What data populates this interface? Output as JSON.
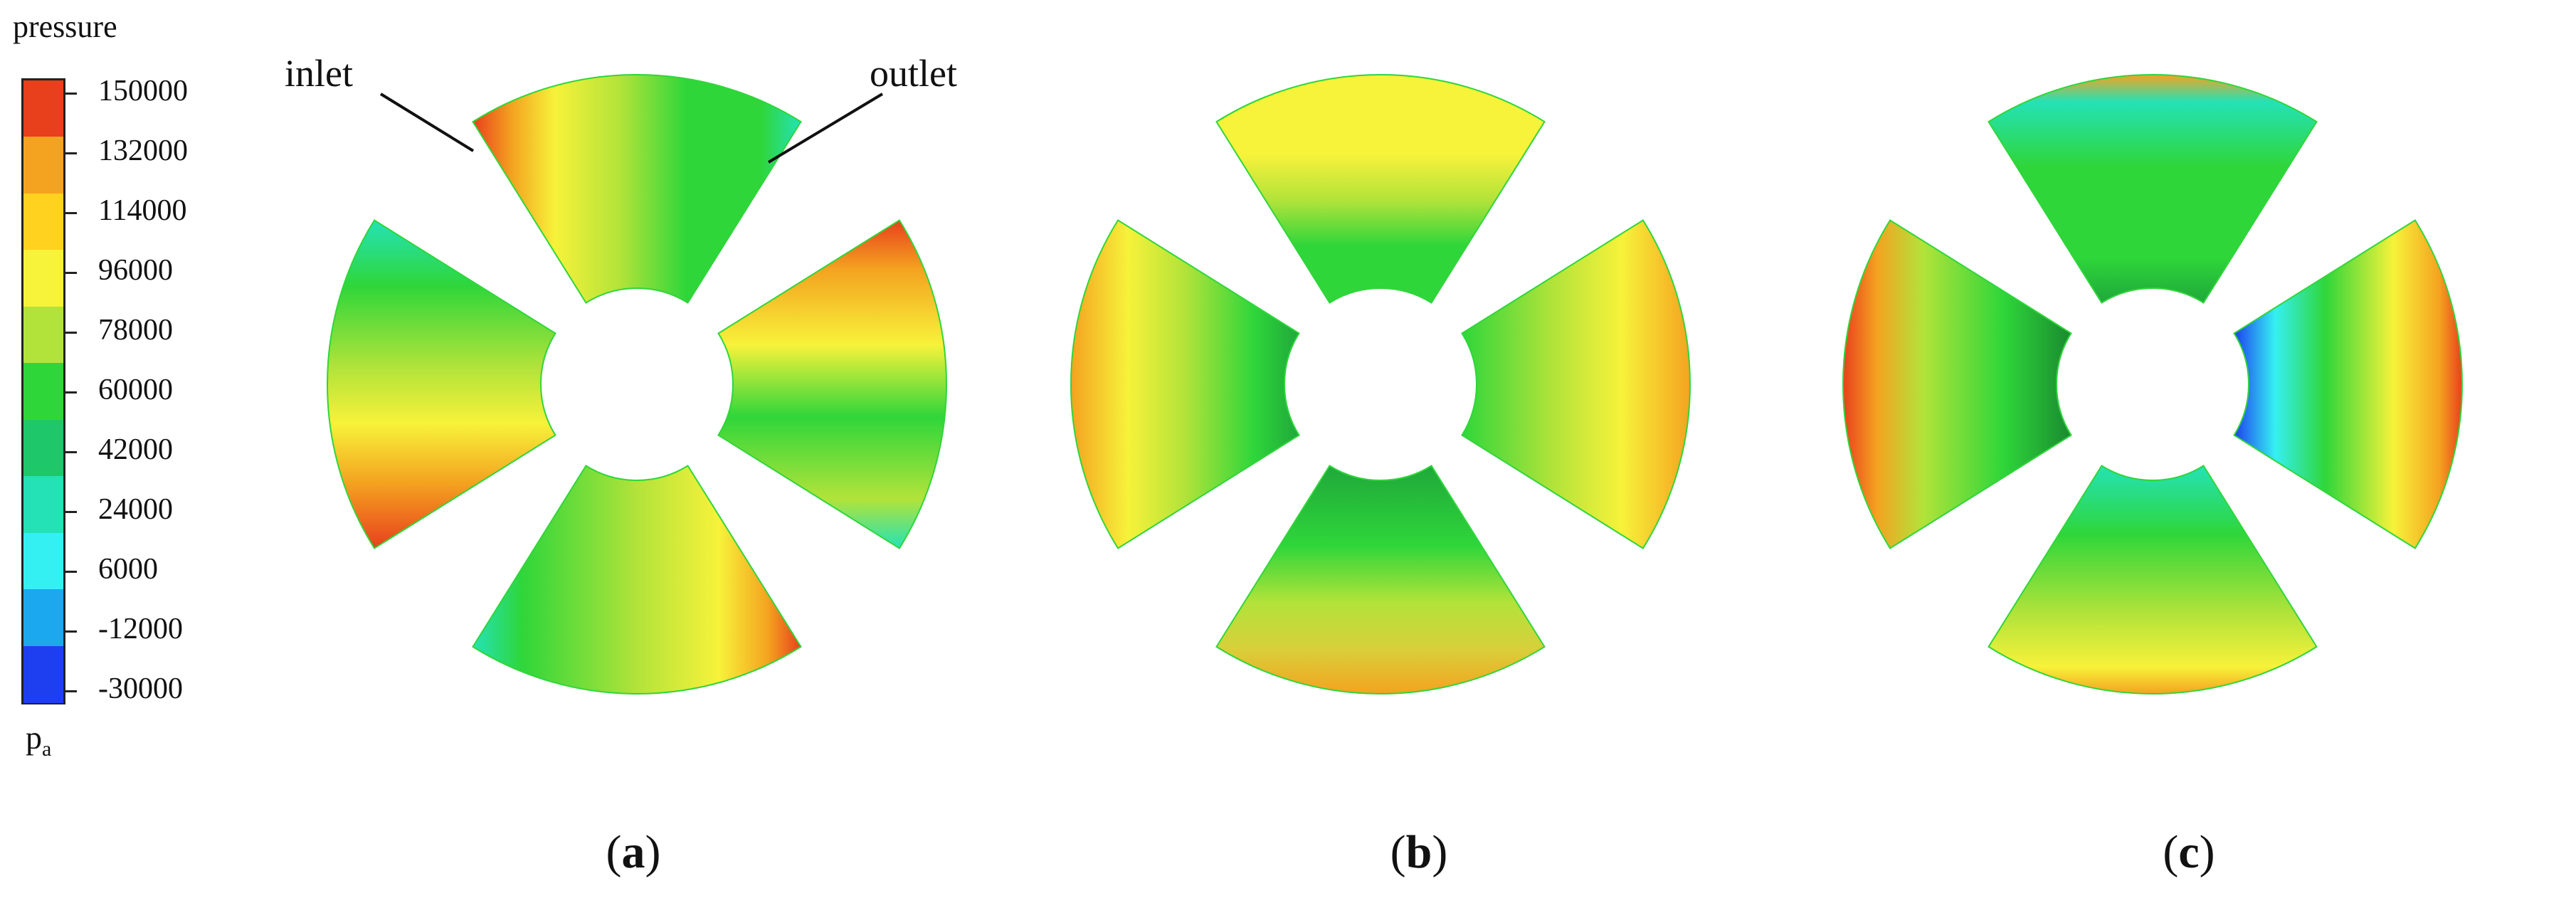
{
  "legend": {
    "title": "pressure",
    "unit": "p",
    "unit_subscript": "a",
    "ticks": [
      "150000",
      "132000",
      "114000",
      "96000",
      "78000",
      "60000",
      "42000",
      "24000",
      "6000",
      "-12000",
      "-30000"
    ],
    "colors": [
      "#e8401c",
      "#f4a320",
      "#ffd21f",
      "#f7f23a",
      "#b2e33a",
      "#2fd63a",
      "#1ec76a",
      "#24e2b6",
      "#35f0f2",
      "#1ca8ee",
      "#1e3ff0"
    ]
  },
  "annotations": {
    "inlet": "inlet",
    "outlet": "outlet"
  },
  "panels": [
    {
      "id": "a",
      "caption_open": "(",
      "caption_letter": "a",
      "caption_close": ")"
    },
    {
      "id": "b",
      "caption_open": "(",
      "caption_letter": "b",
      "caption_close": ")"
    },
    {
      "id": "c",
      "caption_open": "(",
      "caption_letter": "c",
      "caption_close": ")"
    }
  ]
}
